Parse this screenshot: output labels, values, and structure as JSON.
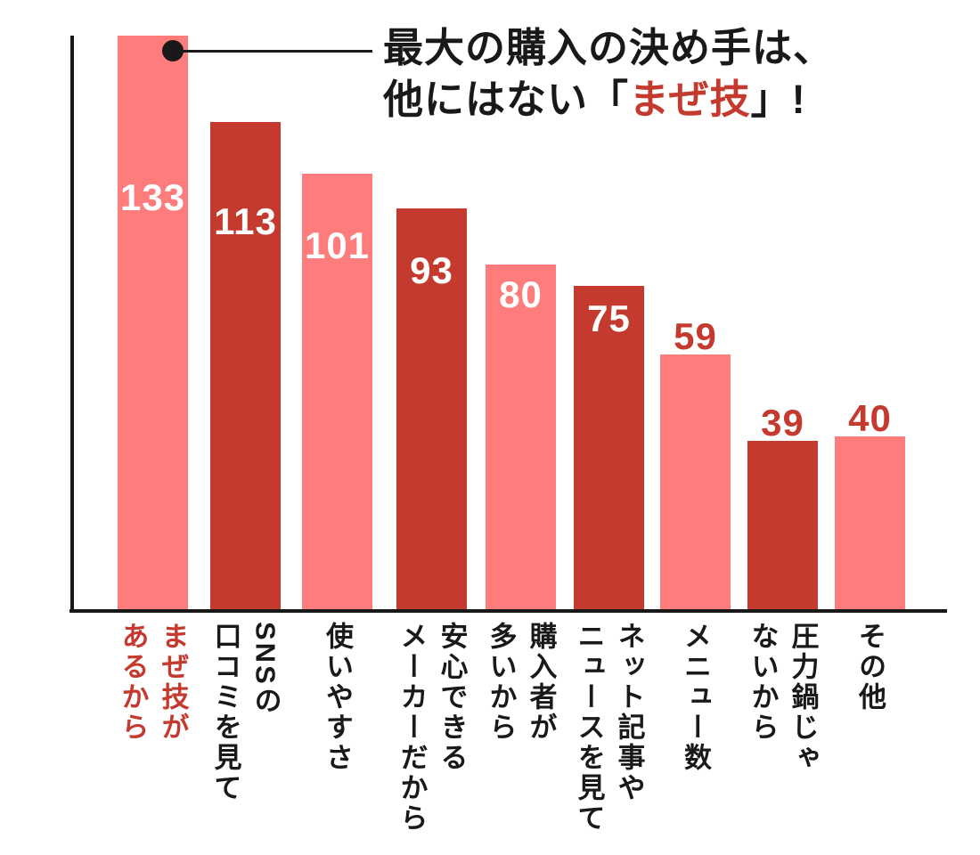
{
  "title": {
    "line1": "最大の購入の決め手は、",
    "line2_prefix": "他にはない「",
    "line2_accent": "まぜ技",
    "line2_suffix": "」!"
  },
  "colors": {
    "pink": "#fe7c7c",
    "red": "#c43a2e",
    "ink": "#191919",
    "value_inside": "#ffffff"
  },
  "chart_data": {
    "type": "bar",
    "orientation": "vertical",
    "title": "最大の購入の決め手は、他にはない「まぜ技」!",
    "categories": [
      "まぜ技が\nあるから",
      "SNSの\n口コミを見て",
      "使いやすさ",
      "安心できる\nメーカーだから",
      "購入者が\n多いから",
      "ネット記事や\nニュースを見て",
      "メニュー数",
      "圧力鍋じゃ\nないから",
      "その他"
    ],
    "values": [
      133,
      113,
      101,
      93,
      80,
      75,
      59,
      39,
      40
    ],
    "bar_colors": [
      "pink",
      "red",
      "pink",
      "red",
      "pink",
      "red",
      "pink",
      "red",
      "pink"
    ],
    "value_label_placement": [
      "inside",
      "inside",
      "inside",
      "inside",
      "inside",
      "inside",
      "above",
      "above",
      "above"
    ],
    "highlight_index": 0,
    "ylim": [
      0,
      140
    ],
    "grid": false,
    "legend": false,
    "category_text_direction": "vertical-rl",
    "xlabel": "",
    "ylabel": ""
  }
}
